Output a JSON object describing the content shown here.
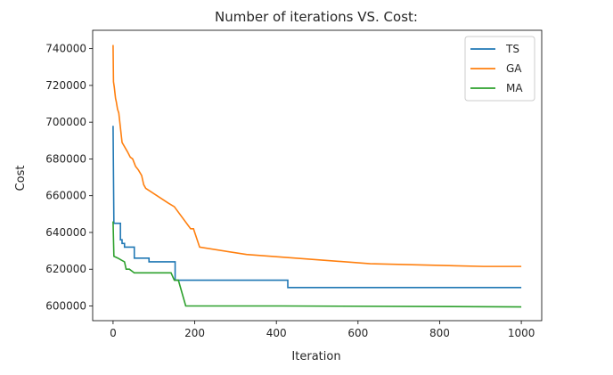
{
  "chart_data": {
    "type": "line",
    "title": "Number of iterations VS. Cost:",
    "xlabel": "Iteration",
    "ylabel": "Cost",
    "xlim": [
      -50,
      1050
    ],
    "ylim": [
      592000,
      750000
    ],
    "xticks": [
      0,
      200,
      400,
      600,
      800,
      1000
    ],
    "yticks": [
      600000,
      620000,
      640000,
      660000,
      680000,
      700000,
      720000,
      740000
    ],
    "legend_position": "top-right",
    "grid": false,
    "series": [
      {
        "name": "TS",
        "color": "#1f77b4",
        "x": [
          0,
          2,
          2,
          18,
          18,
          22,
          22,
          28,
          28,
          52,
          52,
          88,
          88,
          152,
          152,
          428,
          428,
          1000
        ],
        "y": [
          698000,
          645000,
          645000,
          645000,
          636000,
          636000,
          634000,
          634000,
          632000,
          632000,
          626000,
          626000,
          624000,
          624000,
          614000,
          614000,
          610000,
          610000
        ]
      },
      {
        "name": "GA",
        "color": "#ff7f0e",
        "x": [
          0,
          1,
          1,
          3,
          3,
          6,
          6,
          8,
          8,
          11,
          11,
          14,
          14,
          18,
          18,
          22,
          22,
          35,
          35,
          42,
          42,
          48,
          48,
          55,
          55,
          62,
          62,
          70,
          70,
          75,
          75,
          80,
          80,
          135,
          135,
          150,
          150,
          190,
          190,
          197,
          197,
          212,
          212,
          327,
          327,
          630,
          630,
          908,
          908,
          1000
        ],
        "y": [
          742000,
          722000,
          722000,
          719000,
          719000,
          713000,
          713000,
          711000,
          711000,
          707000,
          707000,
          705000,
          705000,
          697000,
          697000,
          689000,
          689000,
          684000,
          684000,
          681000,
          681000,
          680000,
          680000,
          676000,
          676000,
          674000,
          674000,
          671000,
          671000,
          666000,
          666000,
          664000,
          664000,
          656000,
          656000,
          654000,
          654000,
          642000,
          642000,
          642000,
          642000,
          632000,
          632000,
          628000,
          628000,
          623000,
          623000,
          621500,
          621500,
          621500
        ]
      },
      {
        "name": "MA",
        "color": "#2ca02c",
        "x": [
          0,
          2,
          2,
          12,
          12,
          20,
          20,
          28,
          28,
          32,
          32,
          40,
          40,
          52,
          52,
          142,
          142,
          150,
          150,
          160,
          160,
          178,
          178,
          412,
          412,
          1000
        ],
        "y": [
          646000,
          627000,
          627000,
          626000,
          626000,
          625000,
          625000,
          624000,
          624000,
          620000,
          620000,
          620000,
          620000,
          618000,
          618000,
          618000,
          618000,
          614000,
          614000,
          614000,
          614000,
          600000,
          600000,
          600000,
          600000,
          599500
        ]
      }
    ]
  }
}
